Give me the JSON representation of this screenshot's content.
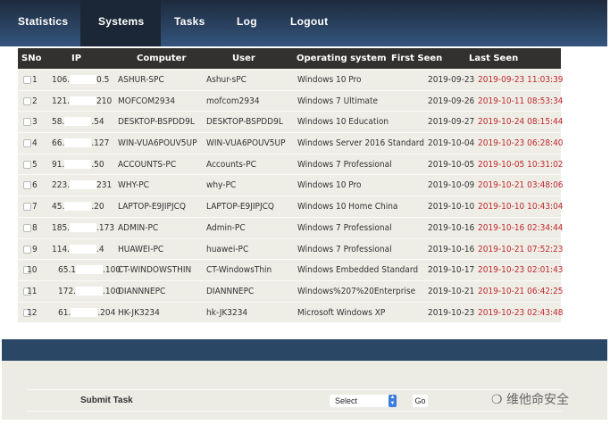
{
  "nav": {
    "items": [
      {
        "label": "Statistics"
      },
      {
        "label": "Systems",
        "active": true
      },
      {
        "label": "Tasks"
      },
      {
        "label": "Log"
      },
      {
        "label": "Logout"
      }
    ]
  },
  "table": {
    "headers": {
      "sno": "SNo",
      "ip": "IP",
      "computer": "Computer",
      "user": "User",
      "os": "Operating system",
      "first": "First Seen",
      "last": "Last Seen"
    },
    "rows": [
      {
        "sno": "1",
        "ip_a": "106.",
        "ip_b": "0.5",
        "computer": "ASHUR-SPC",
        "user": "Ashur-sPC",
        "os": "Windows 10 Pro",
        "first": "2019-09-23",
        "last": "2019-09-23 11:03:39"
      },
      {
        "sno": "2",
        "ip_a": "121.",
        "ip_b": "210",
        "computer": "MOFCOM2934",
        "user": "mofcom2934",
        "os": "Windows 7 Ultimate",
        "first": "2019-09-26",
        "last": "2019-10-11 08:53:34"
      },
      {
        "sno": "3",
        "ip_a": "58.",
        "ip_b": ".54",
        "computer": "DESKTOP-BSPDD9L",
        "user": "DESKTOP-BSPDD9L",
        "os": "Windows 10 Education",
        "first": "2019-09-27",
        "last": "2019-10-24 08:15:44"
      },
      {
        "sno": "4",
        "ip_a": "66.",
        "ip_b": ".127",
        "computer": "WIN-VUA6POUV5UP",
        "user": "WIN-VUA6POUV5UP",
        "os": "Windows Server 2016 Standard",
        "first": "2019-10-04",
        "last": "2019-10-23 06:28:40"
      },
      {
        "sno": "5",
        "ip_a": "91.",
        "ip_b": ".50",
        "computer": "ACCOUNTS-PC",
        "user": "Accounts-PC",
        "os": "Windows 7 Professional",
        "first": "2019-10-05",
        "last": "2019-10-05 10:31:02"
      },
      {
        "sno": "6",
        "ip_a": "223.",
        "ip_b": "231",
        "computer": "WHY-PC",
        "user": "why-PC",
        "os": "Windows 10 Pro",
        "first": "2019-10-09",
        "last": "2019-10-21 03:48:06"
      },
      {
        "sno": "7",
        "ip_a": "45.",
        "ip_b": ".20",
        "computer": "LAPTOP-E9JIPJCQ",
        "user": "LAPTOP-E9JIPJCQ",
        "os": "Windows 10 Home China",
        "first": "2019-10-10",
        "last": "2019-10-10 10:43:04"
      },
      {
        "sno": "8",
        "ip_a": "185.",
        "ip_b": ".173",
        "computer": "ADMIN-PC",
        "user": "Admin-PC",
        "os": "Windows 7 Professional",
        "first": "2019-10-16",
        "last": "2019-10-16 02:34:44"
      },
      {
        "sno": "9",
        "ip_a": "114.",
        "ip_b": ".4",
        "computer": "HUAWEI-PC",
        "user": "huawei-PC",
        "os": "Windows 7 Professional",
        "first": "2019-10-16",
        "last": "2019-10-21 07:52:23"
      },
      {
        "sno": "10",
        "ip_a": "65.1",
        "ip_b": ".100",
        "computer": "CT-WINDOWSTHIN",
        "user": "CT-WindowsThin",
        "os": "Windows Embedded Standard",
        "first": "2019-10-17",
        "last": "2019-10-23 02:01:43"
      },
      {
        "sno": "11",
        "ip_a": "172.",
        "ip_b": ".100",
        "computer": "DIANNNEPC",
        "user": "DIANNNEPC",
        "os": "Windows%207%20Enterprise",
        "first": "2019-10-21",
        "last": "2019-10-21 06:42:25"
      },
      {
        "sno": "12",
        "ip_a": "61.",
        "ip_b": ".204",
        "computer": "HK-JK3234",
        "user": "hk-JK3234",
        "os": "Microsoft Windows XP",
        "first": "2019-10-23",
        "last": "2019-10-23 02:43:48"
      }
    ]
  },
  "footer": {
    "submit_label": "Submit Task",
    "select_value": "Select",
    "go_label": "Go",
    "watermark": "维他命安全"
  },
  "colors": {
    "nav": "#2b4766",
    "last_seen": "#c0282f",
    "header": "#333130"
  }
}
